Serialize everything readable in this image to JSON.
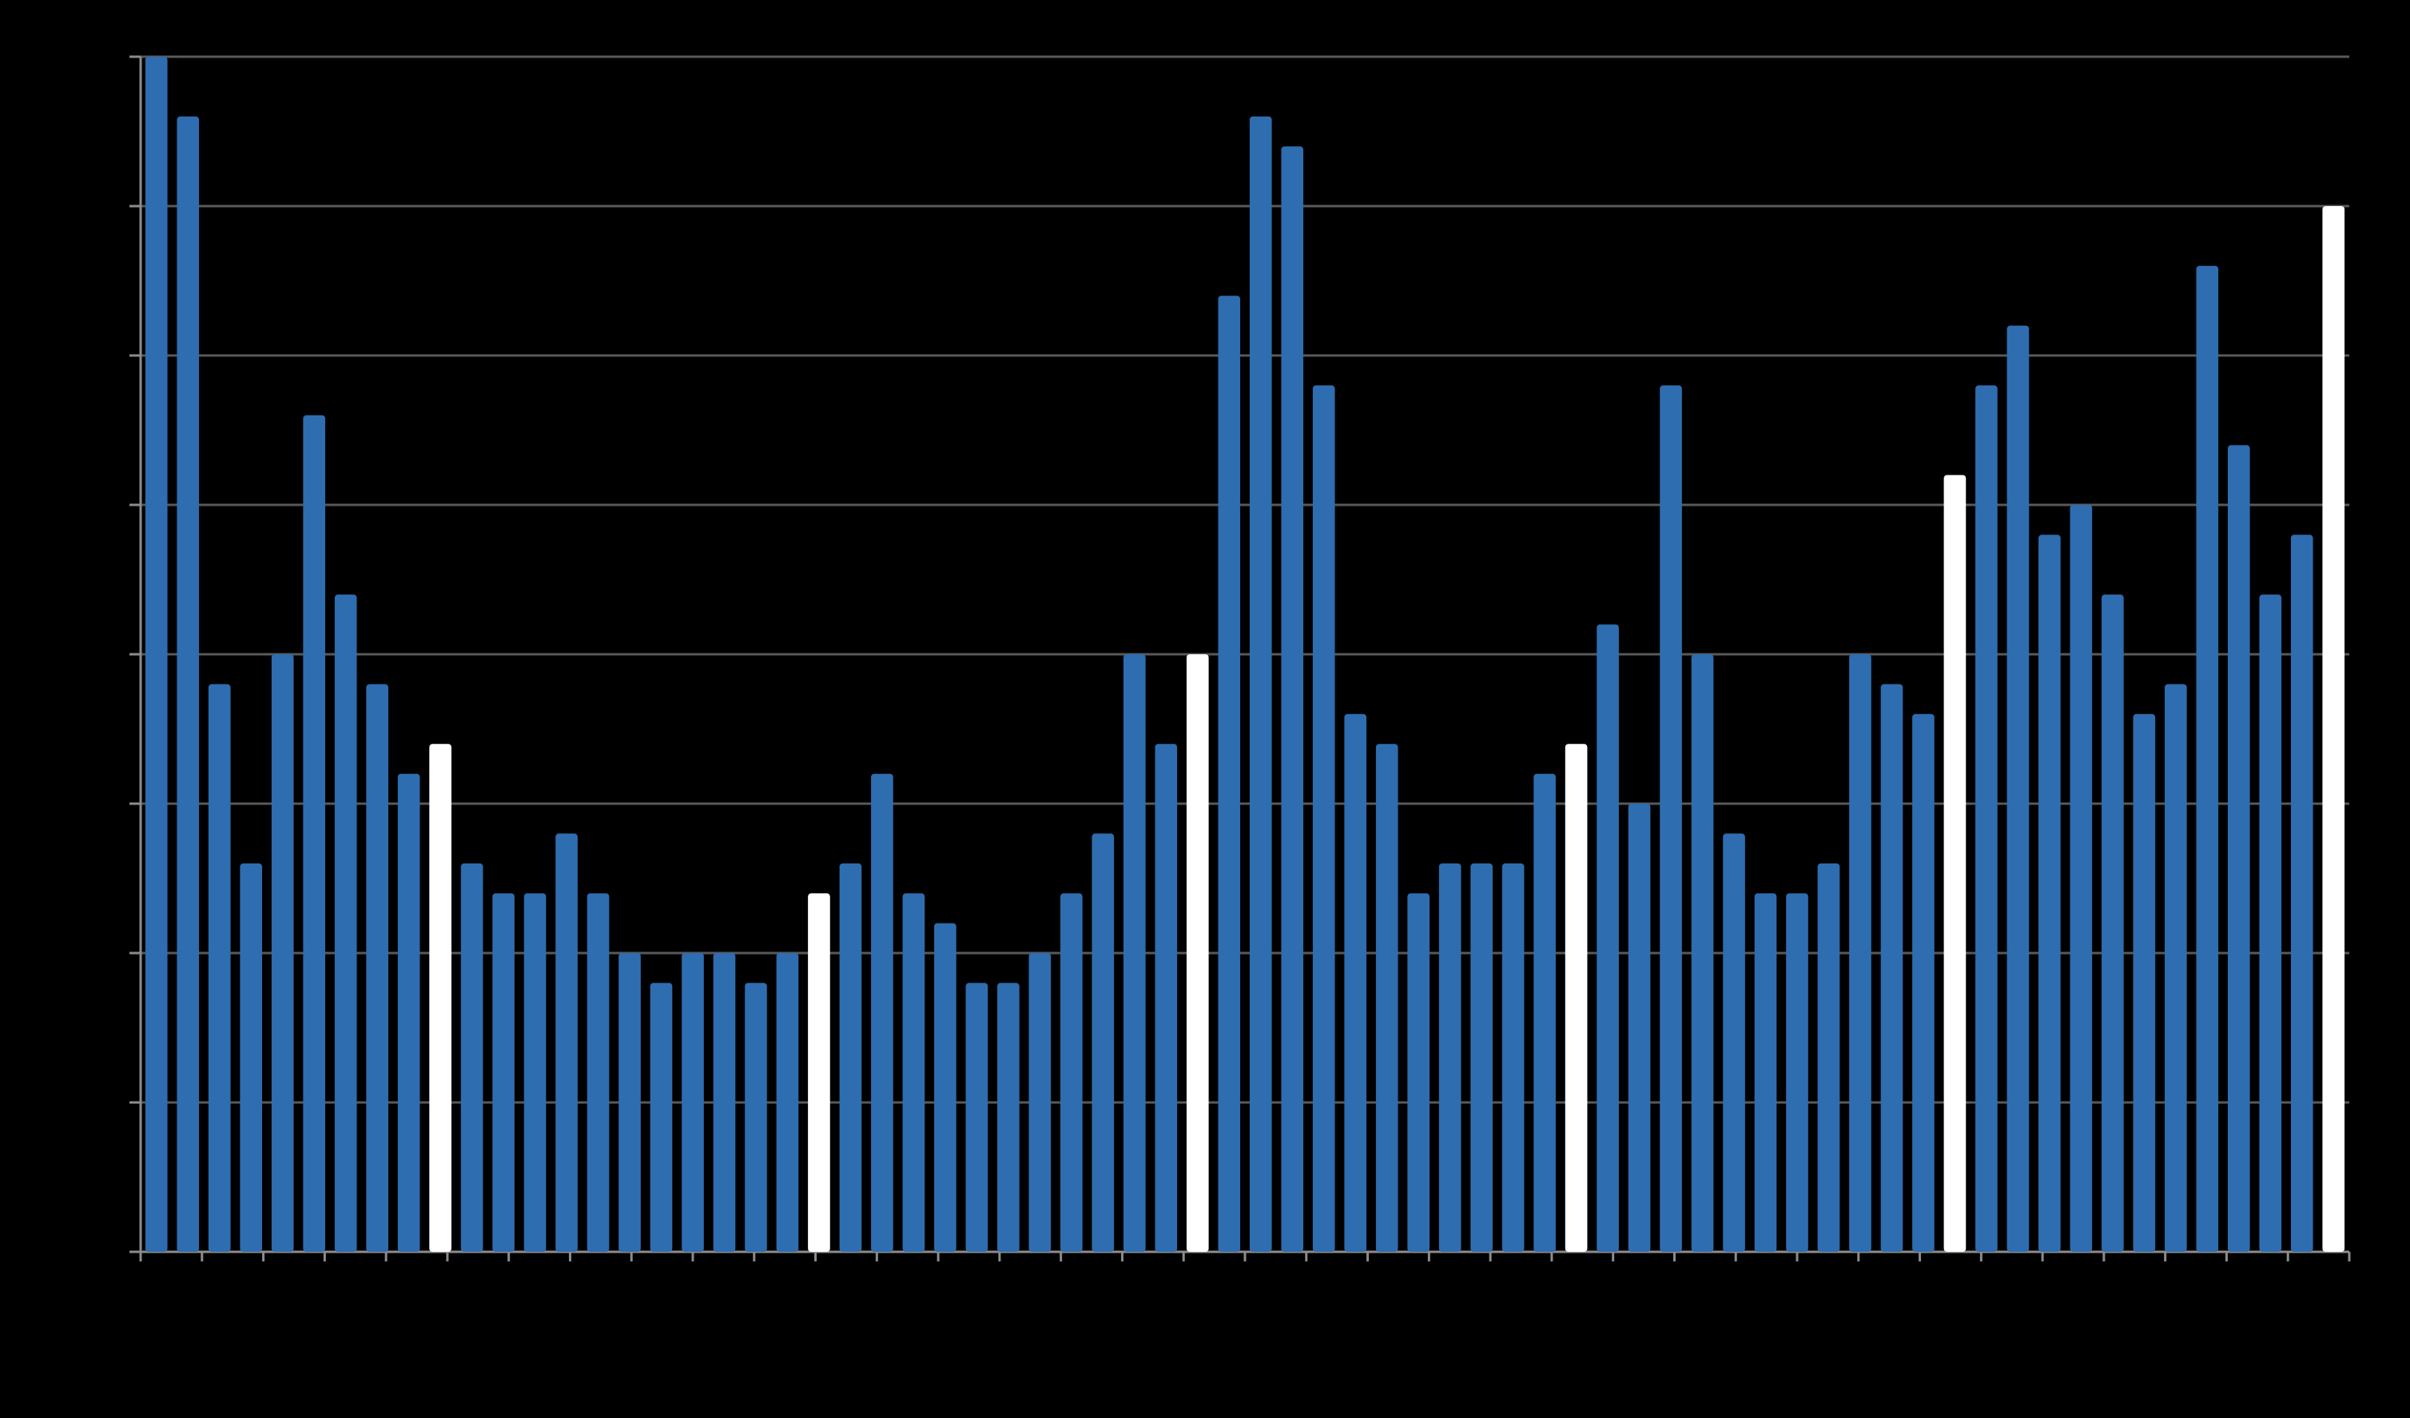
{
  "chart_data": {
    "type": "bar",
    "values": [
      80,
      76,
      38,
      26,
      40,
      56,
      44,
      38,
      32,
      34,
      26,
      24,
      24,
      28,
      24,
      20,
      18,
      20,
      20,
      18,
      20,
      24,
      26,
      32,
      24,
      22,
      18,
      18,
      20,
      24,
      28,
      40,
      34,
      40,
      64,
      76,
      74,
      58,
      36,
      34,
      24,
      26,
      26,
      26,
      32,
      34,
      42,
      30,
      58,
      40,
      28,
      24,
      24,
      26,
      40,
      38,
      36,
      52,
      58,
      62,
      48,
      50,
      44,
      36,
      38,
      66,
      54,
      44,
      48,
      70
    ],
    "highlighted_indices": [
      9,
      21,
      33,
      45,
      57,
      69
    ],
    "ylim": [
      0,
      80
    ],
    "ytick_step": 10,
    "xtick_count": 36,
    "grid": true,
    "colors": {
      "bar": "#2e6db0",
      "highlight": "#ffffff",
      "grid": "#595959",
      "axis": "#8c8c8c",
      "background": "#000000"
    }
  }
}
